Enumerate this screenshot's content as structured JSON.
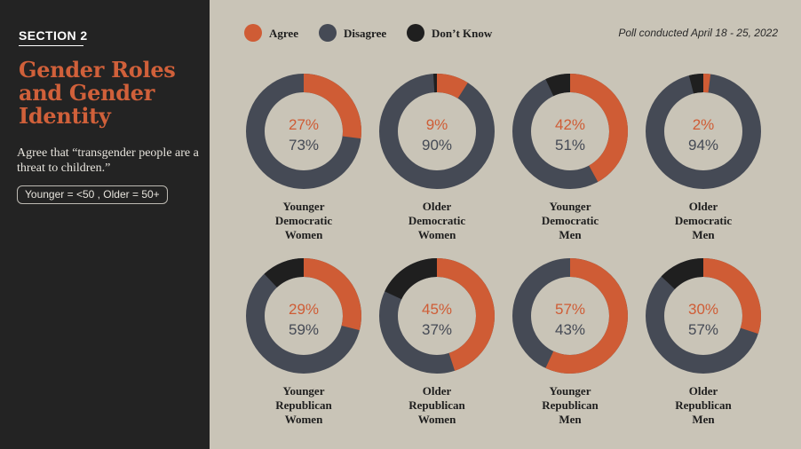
{
  "sidebar": {
    "section_label": "SECTION 2",
    "title": "Gender Roles and Gender Identity",
    "subtitle": "Agree that “transgender people are a threat to children.”",
    "age_note": "Younger = <50 , Older = 50+"
  },
  "poll_note": "Poll conducted April 18 - 25, 2022",
  "colors": {
    "agree": "#cf5c35",
    "disagree": "#454a55",
    "dont_know": "#1f1f1f",
    "background": "#c9c4b7",
    "sidebar": "#232323"
  },
  "chart_data": {
    "type": "donut",
    "title": "Agree that “transgender people are a threat to children.”",
    "legend": [
      "Agree",
      "Disagree",
      "Don’t Know"
    ],
    "legend_position": "top",
    "series": [
      {
        "label": [
          "Younger",
          "Democratic",
          "Women"
        ],
        "agree": 27,
        "disagree": 73,
        "dont_know": 0
      },
      {
        "label": [
          "Older",
          "Democratic",
          "Women"
        ],
        "agree": 9,
        "disagree": 90,
        "dont_know": 1
      },
      {
        "label": [
          "Younger",
          "Democratic",
          "Men"
        ],
        "agree": 42,
        "disagree": 51,
        "dont_know": 7
      },
      {
        "label": [
          "Older",
          "Democratic",
          "Men"
        ],
        "agree": 2,
        "disagree": 94,
        "dont_know": 4
      },
      {
        "label": [
          "Younger",
          "Republican",
          "Women"
        ],
        "agree": 29,
        "disagree": 59,
        "dont_know": 12
      },
      {
        "label": [
          "Older",
          "Republican",
          "Women"
        ],
        "agree": 45,
        "disagree": 37,
        "dont_know": 18
      },
      {
        "label": [
          "Younger",
          "Republican",
          "Men"
        ],
        "agree": 57,
        "disagree": 43,
        "dont_know": 0
      },
      {
        "label": [
          "Older",
          "Republican",
          "Men"
        ],
        "agree": 30,
        "disagree": 57,
        "dont_know": 13
      }
    ]
  }
}
